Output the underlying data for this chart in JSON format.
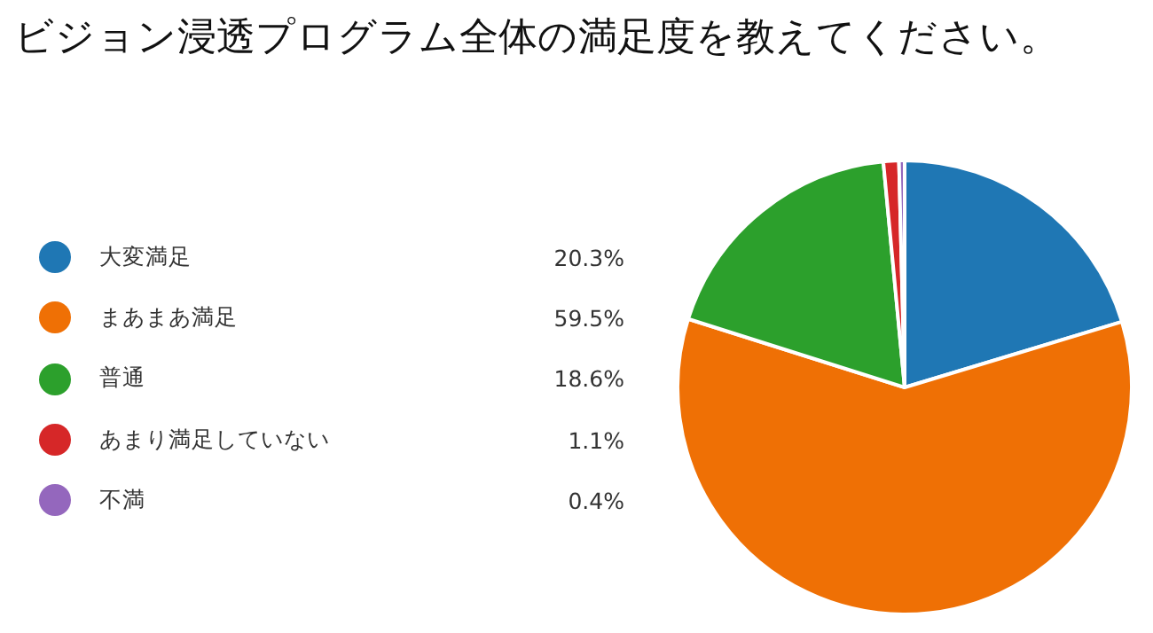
{
  "chart_data": {
    "type": "pie",
    "title": "ビジョン浸透プログラム全体の満足度を教えてください。",
    "categories": [
      "大変満足",
      "まあまあ満足",
      "普通",
      "あまり満足していない",
      "不満"
    ],
    "values": [
      20.3,
      59.5,
      18.6,
      1.1,
      0.4
    ],
    "colors": [
      "#1f77b4",
      "#ef7005",
      "#2ca02c",
      "#d62728",
      "#9467bd"
    ],
    "value_labels": [
      "20.3%",
      "59.5%",
      "18.6%",
      "1.1%",
      "0.4%"
    ],
    "legend": "left"
  }
}
